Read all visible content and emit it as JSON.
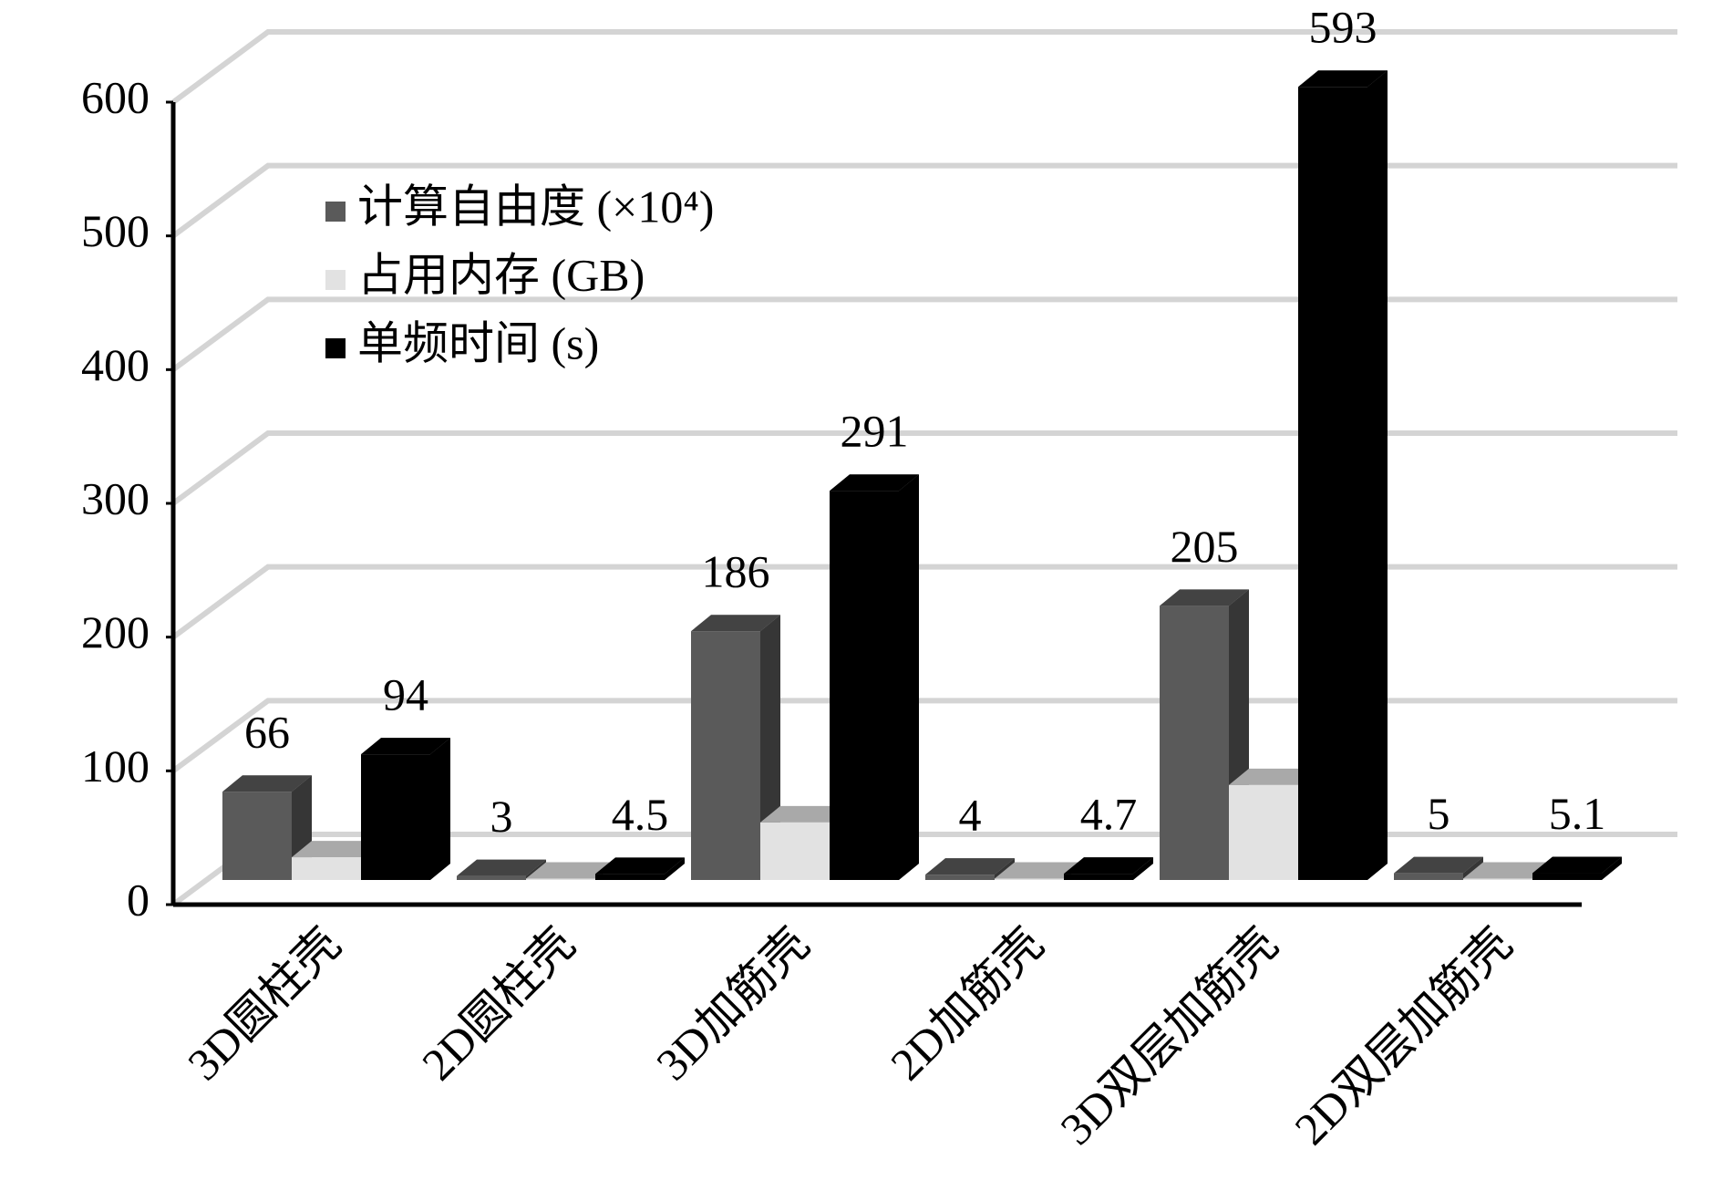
{
  "chart_data": {
    "type": "bar3d",
    "categories": [
      "3D圆柱壳",
      "2D圆柱壳",
      "3D加筋壳",
      "2D加筋壳",
      "3D双层加筋壳",
      "2D双层加筋壳"
    ],
    "series": [
      {
        "name": "计算自由度 (×10⁴)",
        "color": "#5a5a5a",
        "values": [
          66,
          3,
          186,
          4,
          205,
          5
        ],
        "labels": true
      },
      {
        "name": "占用内存 (GB)",
        "color": "#e2e2e2",
        "values": [
          17,
          1,
          43,
          1,
          71,
          1
        ],
        "labels": false
      },
      {
        "name": "单频时间 (s)",
        "color": "#000000",
        "values": [
          94,
          4.5,
          291,
          4.7,
          593,
          5.1
        ],
        "labels": true
      }
    ],
    "ylim": [
      0,
      600
    ],
    "yticks": [
      0,
      100,
      200,
      300,
      400,
      500,
      600
    ],
    "grid": true
  }
}
